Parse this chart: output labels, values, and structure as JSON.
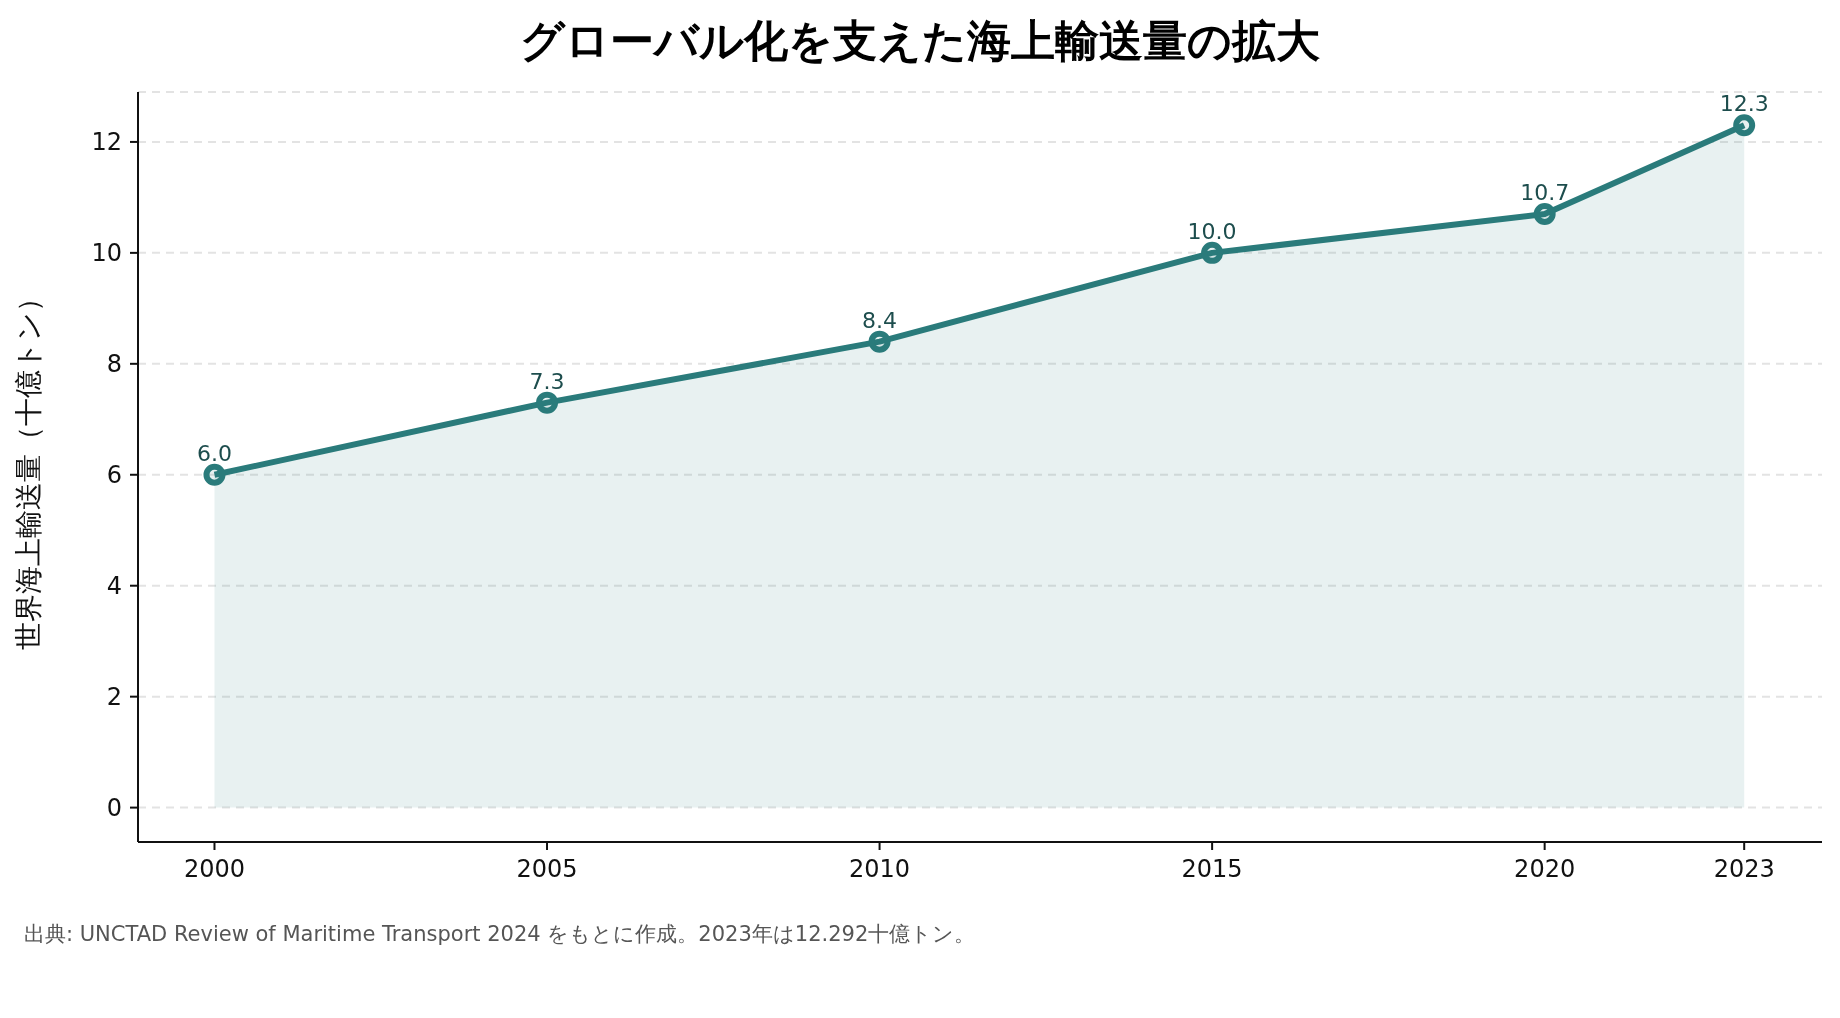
{
  "chart_data": {
    "type": "area",
    "title": "グローバル化を支えた海上輸送量の拡大",
    "ylabel": "世界海上輸送量（十億トン）",
    "annotations": [
      "出典: UNCTAD Review of Maritime Transport 2024 をもとに作成。2023年は12.292十億トン。"
    ],
    "x": [
      2000,
      2005,
      2010,
      2015,
      2020,
      2023
    ],
    "series": [
      {
        "color": "#2a7b7b",
        "values": [
          6.0,
          7.3,
          8.4,
          10.0,
          10.7,
          12.3
        ],
        "value_labels": [
          "6.0",
          "7.3",
          "8.4",
          "10.0",
          "10.7",
          "12.3"
        ]
      }
    ],
    "xlim": [
      1998.85,
      2024.17
    ],
    "xticks": [
      2000,
      2005,
      2010,
      2015,
      2020,
      2023
    ],
    "ylim": [
      -0.62,
      12.9
    ],
    "yticks": [
      0,
      2,
      4,
      6,
      8,
      10,
      12
    ],
    "grid": "y",
    "marker": "circle",
    "line_style": "solid"
  }
}
